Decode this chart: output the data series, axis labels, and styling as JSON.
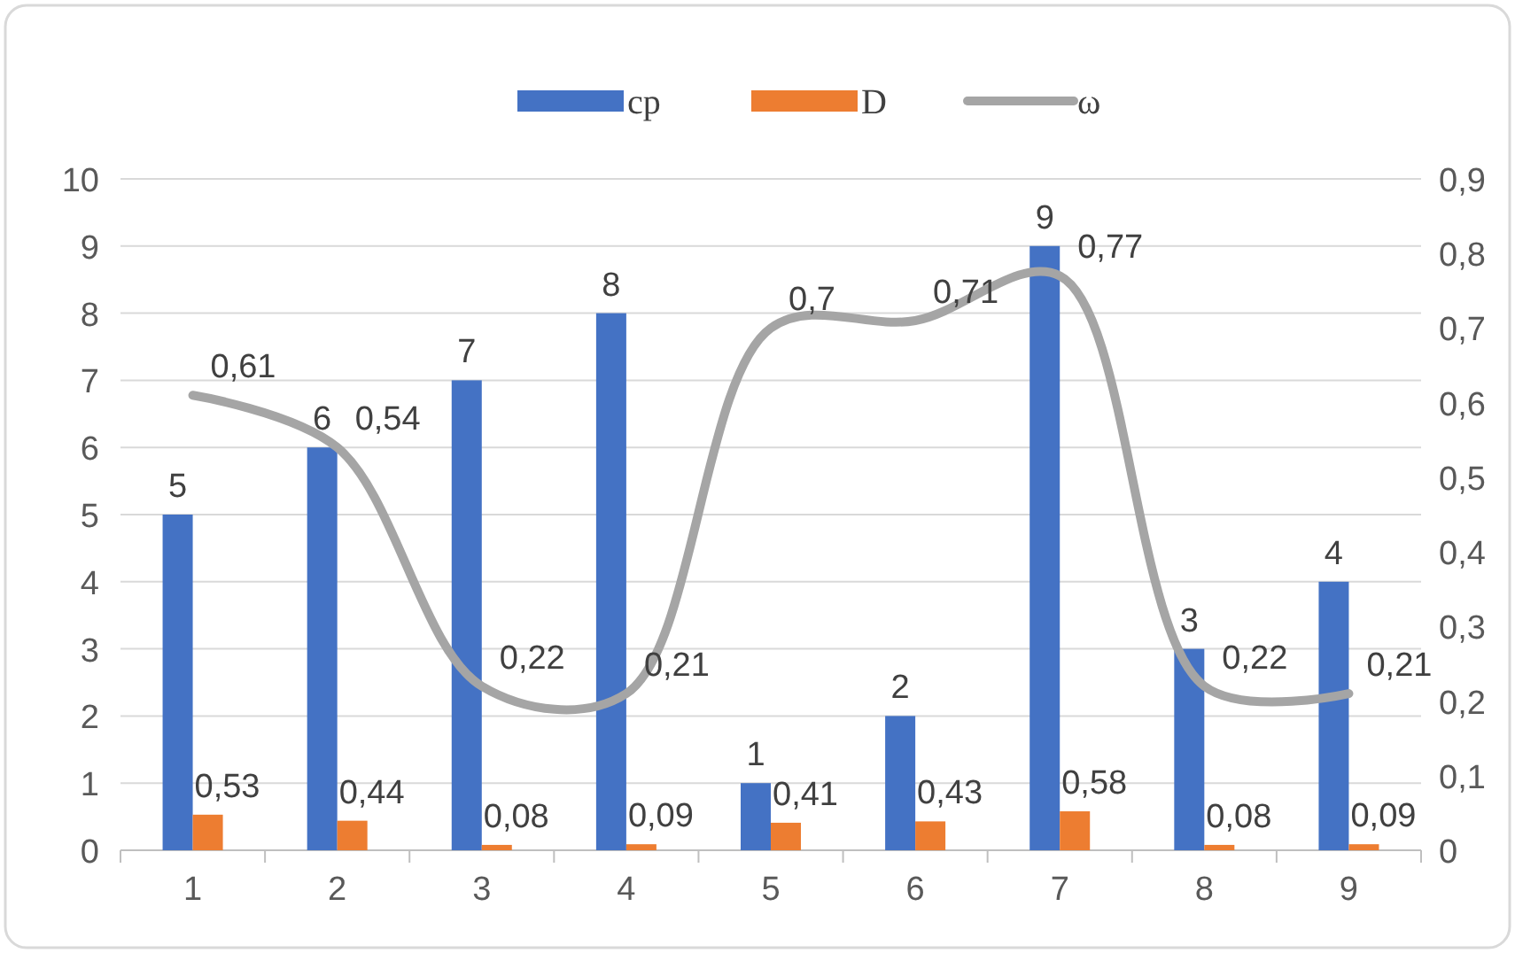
{
  "chart_data": {
    "type": "bar",
    "categories": [
      "1",
      "2",
      "3",
      "4",
      "5",
      "6",
      "7",
      "8",
      "9"
    ],
    "series": [
      {
        "name": "cp",
        "color": "#4472c4",
        "values": [
          5,
          6,
          7,
          8,
          1,
          2,
          9,
          3,
          4
        ],
        "value_labels": [
          "5",
          "6",
          "7",
          "8",
          "1",
          "2",
          "9",
          "3",
          "4"
        ]
      },
      {
        "name": "D",
        "color": "#ed7d31",
        "values": [
          0.53,
          0.44,
          0.08,
          0.09,
          0.41,
          0.43,
          0.58,
          0.08,
          0.09
        ],
        "value_labels": [
          "0,53",
          "0,44",
          "0,08",
          "0,09",
          "0,41",
          "0,43",
          "0,58",
          "0,08",
          "0,09"
        ]
      },
      {
        "name": "ω",
        "type": "line",
        "axis": "y2",
        "color": "#a5a5a5",
        "values": [
          0.61,
          0.54,
          0.22,
          0.21,
          0.7,
          0.71,
          0.77,
          0.22,
          0.21
        ],
        "value_labels": [
          "0,61",
          "0,54",
          "0,22",
          "0,21",
          "0,7",
          "0,71",
          "0,77",
          "0,22",
          "0,21"
        ]
      }
    ],
    "ylim": [
      0,
      10
    ],
    "yticks": [
      0,
      1,
      2,
      3,
      4,
      5,
      6,
      7,
      8,
      9,
      10
    ],
    "y2lim": [
      0,
      0.9
    ],
    "y2ticks": [
      {
        "value": 0,
        "label": "0"
      },
      {
        "value": 0.1,
        "label": "0,1"
      },
      {
        "value": 0.2,
        "label": "0,2"
      },
      {
        "value": 0.3,
        "label": "0,3"
      },
      {
        "value": 0.4,
        "label": "0,4"
      },
      {
        "value": 0.5,
        "label": "0,5"
      },
      {
        "value": 0.6,
        "label": "0,6"
      },
      {
        "value": 0.7,
        "label": "0,7"
      },
      {
        "value": 0.8,
        "label": "0,8"
      },
      {
        "value": 0.9,
        "label": "0,9"
      }
    ],
    "grid": "y",
    "legend": "top",
    "marker": "none",
    "line_style": "solid"
  }
}
